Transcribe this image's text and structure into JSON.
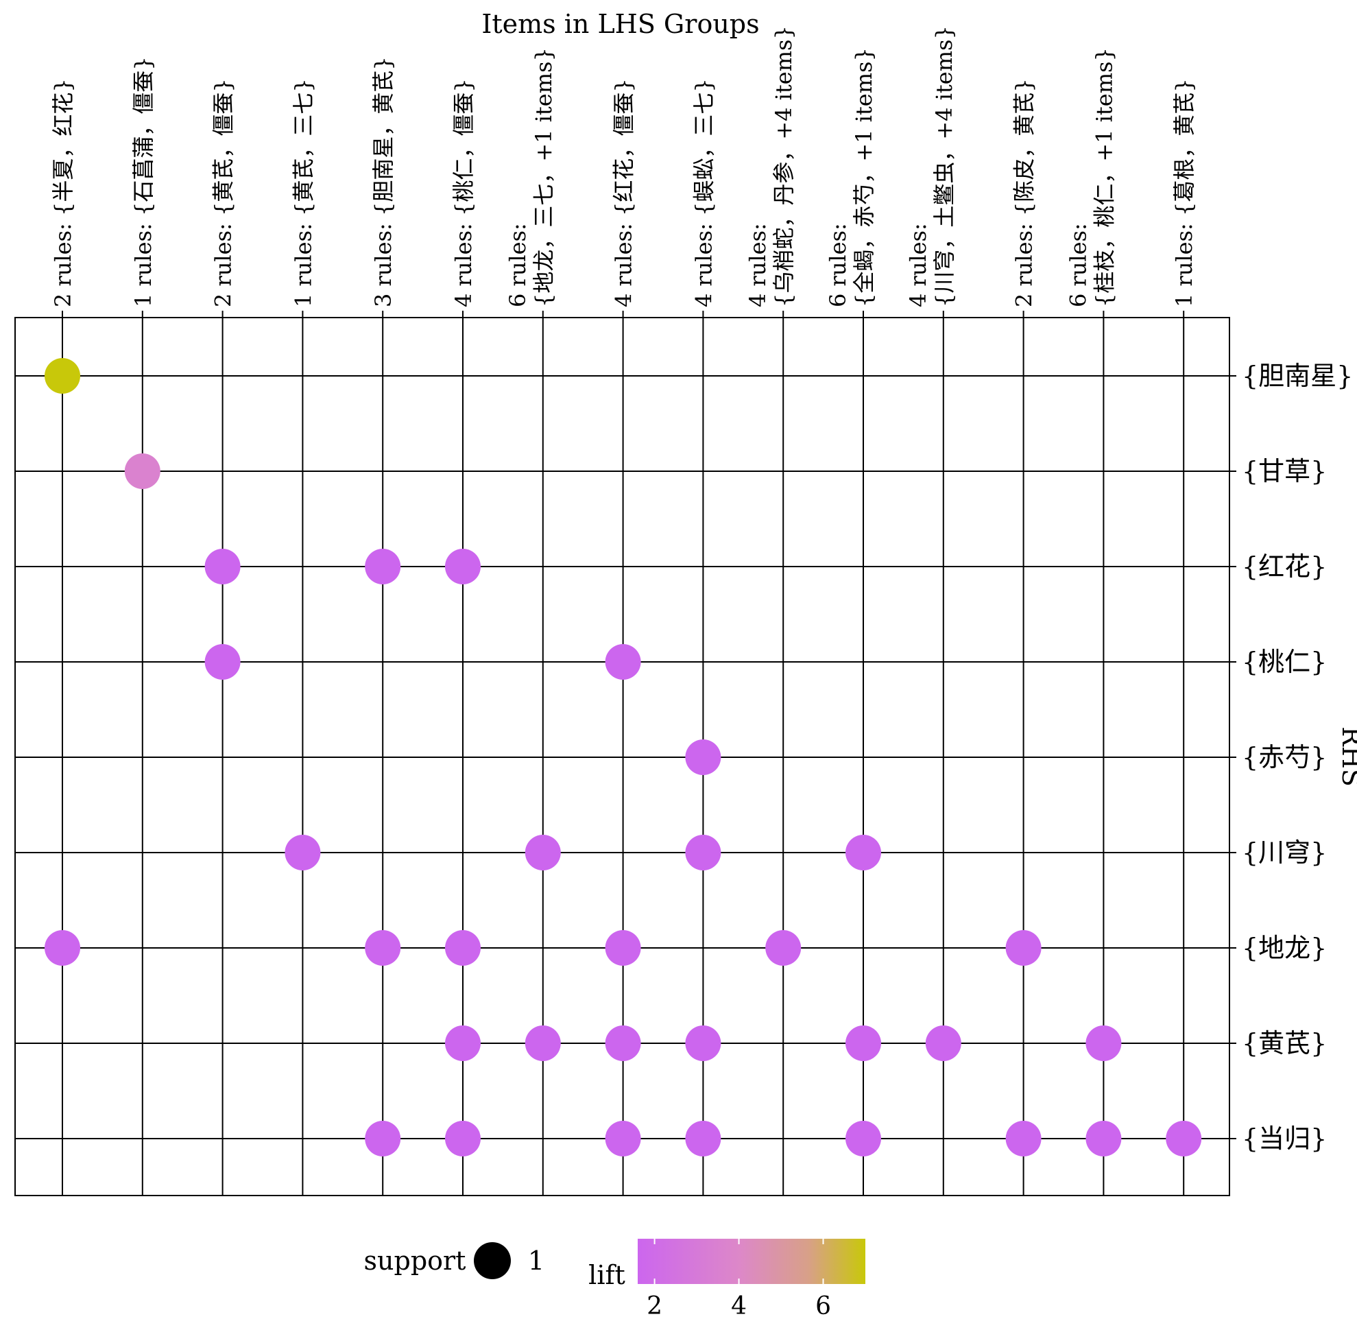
{
  "chart_data": {
    "type": "scatter",
    "subtype": "grouped association-rules matrix",
    "title": "Items in LHS Groups",
    "xlabel": "Items in LHS Groups",
    "ylabel": "RHS",
    "x_categories": [
      {
        "label": "2 rules: {半夏，红花}",
        "lines": [
          "2  rules: {半夏，红花}"
        ]
      },
      {
        "label": "1 rules: {石菖蒲，僵蚕}",
        "lines": [
          "1  rules: {石菖蒲，僵蚕}"
        ]
      },
      {
        "label": "2 rules: {黄芪，僵蚕}",
        "lines": [
          "2  rules: {黄芪，僵蚕}"
        ]
      },
      {
        "label": "1 rules: {黄芪，三七}",
        "lines": [
          "1  rules: {黄芪，三七}"
        ]
      },
      {
        "label": "3 rules: {胆南星，黄芪}",
        "lines": [
          "3  rules: {胆南星，黄芪}"
        ]
      },
      {
        "label": "4 rules: {桃仁，僵蚕}",
        "lines": [
          "4  rules: {桃仁，僵蚕}"
        ]
      },
      {
        "label": "6 rules: {地龙，三七，+1 items}",
        "lines": [
          "6  rules:",
          "{地龙，三七，+1 items}"
        ]
      },
      {
        "label": "4 rules: {红花，僵蚕}",
        "lines": [
          "4  rules: {红花，僵蚕}"
        ]
      },
      {
        "label": "4 rules: {蜈蚣，三七}",
        "lines": [
          "4  rules: {蜈蚣，三七}"
        ]
      },
      {
        "label": "4 rules: {乌梢蛇，丹参，+4 items}",
        "lines": [
          "4  rules:",
          "{乌梢蛇，丹参，+4 items}"
        ]
      },
      {
        "label": "6 rules: {全蝎，赤芍，+1 items}",
        "lines": [
          "6  rules:",
          "{全蝎，赤芍，+1 items}"
        ]
      },
      {
        "label": "4 rules: {川穹，土鳖虫，+4 items}",
        "lines": [
          "4  rules:",
          "{川穹，土鳖虫，+4 items}"
        ]
      },
      {
        "label": "2 rules: {陈皮，黄芪}",
        "lines": [
          "2  rules: {陈皮，黄芪}"
        ]
      },
      {
        "label": "6 rules: {桂枝，桃仁，+1 items}",
        "lines": [
          "6  rules:",
          "{桂枝，桃仁，+1 items}"
        ]
      },
      {
        "label": "1 rules: {葛根，黄芪}",
        "lines": [
          "1  rules: {葛根，黄芪}"
        ]
      }
    ],
    "y_categories": [
      "{胆南星}",
      "{甘草}",
      "{红花}",
      "{桃仁}",
      "{赤芍}",
      "{川穹}",
      "{地龙}",
      "{黄芪}",
      "{当归}"
    ],
    "points": [
      {
        "x": 0,
        "y": 0,
        "lift": 7.0,
        "support": 1
      },
      {
        "x": 1,
        "y": 1,
        "lift": 3.6,
        "support": 1
      },
      {
        "x": 2,
        "y": 2,
        "lift": 1.6,
        "support": 1
      },
      {
        "x": 4,
        "y": 2,
        "lift": 1.6,
        "support": 1
      },
      {
        "x": 5,
        "y": 2,
        "lift": 1.6,
        "support": 1
      },
      {
        "x": 2,
        "y": 3,
        "lift": 1.6,
        "support": 1
      },
      {
        "x": 7,
        "y": 3,
        "lift": 1.6,
        "support": 1
      },
      {
        "x": 8,
        "y": 4,
        "lift": 1.6,
        "support": 1
      },
      {
        "x": 3,
        "y": 5,
        "lift": 1.6,
        "support": 1
      },
      {
        "x": 6,
        "y": 5,
        "lift": 1.6,
        "support": 1
      },
      {
        "x": 8,
        "y": 5,
        "lift": 1.6,
        "support": 1
      },
      {
        "x": 10,
        "y": 5,
        "lift": 1.6,
        "support": 1
      },
      {
        "x": 0,
        "y": 6,
        "lift": 1.6,
        "support": 1
      },
      {
        "x": 4,
        "y": 6,
        "lift": 1.6,
        "support": 1
      },
      {
        "x": 5,
        "y": 6,
        "lift": 1.6,
        "support": 1
      },
      {
        "x": 7,
        "y": 6,
        "lift": 1.6,
        "support": 1
      },
      {
        "x": 9,
        "y": 6,
        "lift": 1.6,
        "support": 1
      },
      {
        "x": 12,
        "y": 6,
        "lift": 1.6,
        "support": 1
      },
      {
        "x": 5,
        "y": 7,
        "lift": 1.6,
        "support": 1
      },
      {
        "x": 6,
        "y": 7,
        "lift": 1.6,
        "support": 1
      },
      {
        "x": 7,
        "y": 7,
        "lift": 1.6,
        "support": 1
      },
      {
        "x": 8,
        "y": 7,
        "lift": 1.6,
        "support": 1
      },
      {
        "x": 10,
        "y": 7,
        "lift": 1.6,
        "support": 1
      },
      {
        "x": 11,
        "y": 7,
        "lift": 1.6,
        "support": 1
      },
      {
        "x": 13,
        "y": 7,
        "lift": 1.6,
        "support": 1
      },
      {
        "x": 4,
        "y": 8,
        "lift": 1.6,
        "support": 1
      },
      {
        "x": 5,
        "y": 8,
        "lift": 1.6,
        "support": 1
      },
      {
        "x": 7,
        "y": 8,
        "lift": 1.6,
        "support": 1
      },
      {
        "x": 8,
        "y": 8,
        "lift": 1.6,
        "support": 1
      },
      {
        "x": 10,
        "y": 8,
        "lift": 1.6,
        "support": 1
      },
      {
        "x": 12,
        "y": 8,
        "lift": 1.6,
        "support": 1
      },
      {
        "x": 13,
        "y": 8,
        "lift": 1.6,
        "support": 1
      },
      {
        "x": 14,
        "y": 8,
        "lift": 1.6,
        "support": 1
      }
    ],
    "legend": {
      "support_label": "support",
      "support_value": "1",
      "lift_label": "lift",
      "lift_ticks": [
        2,
        4,
        6
      ],
      "lift_range": [
        1.6,
        7.0
      ],
      "position": "bottom"
    },
    "colors": {
      "lift_low": "#cc66ee",
      "lift_high": "#c8c80a",
      "grid": "#000000",
      "support_marker": "#000000"
    },
    "grid": true
  }
}
